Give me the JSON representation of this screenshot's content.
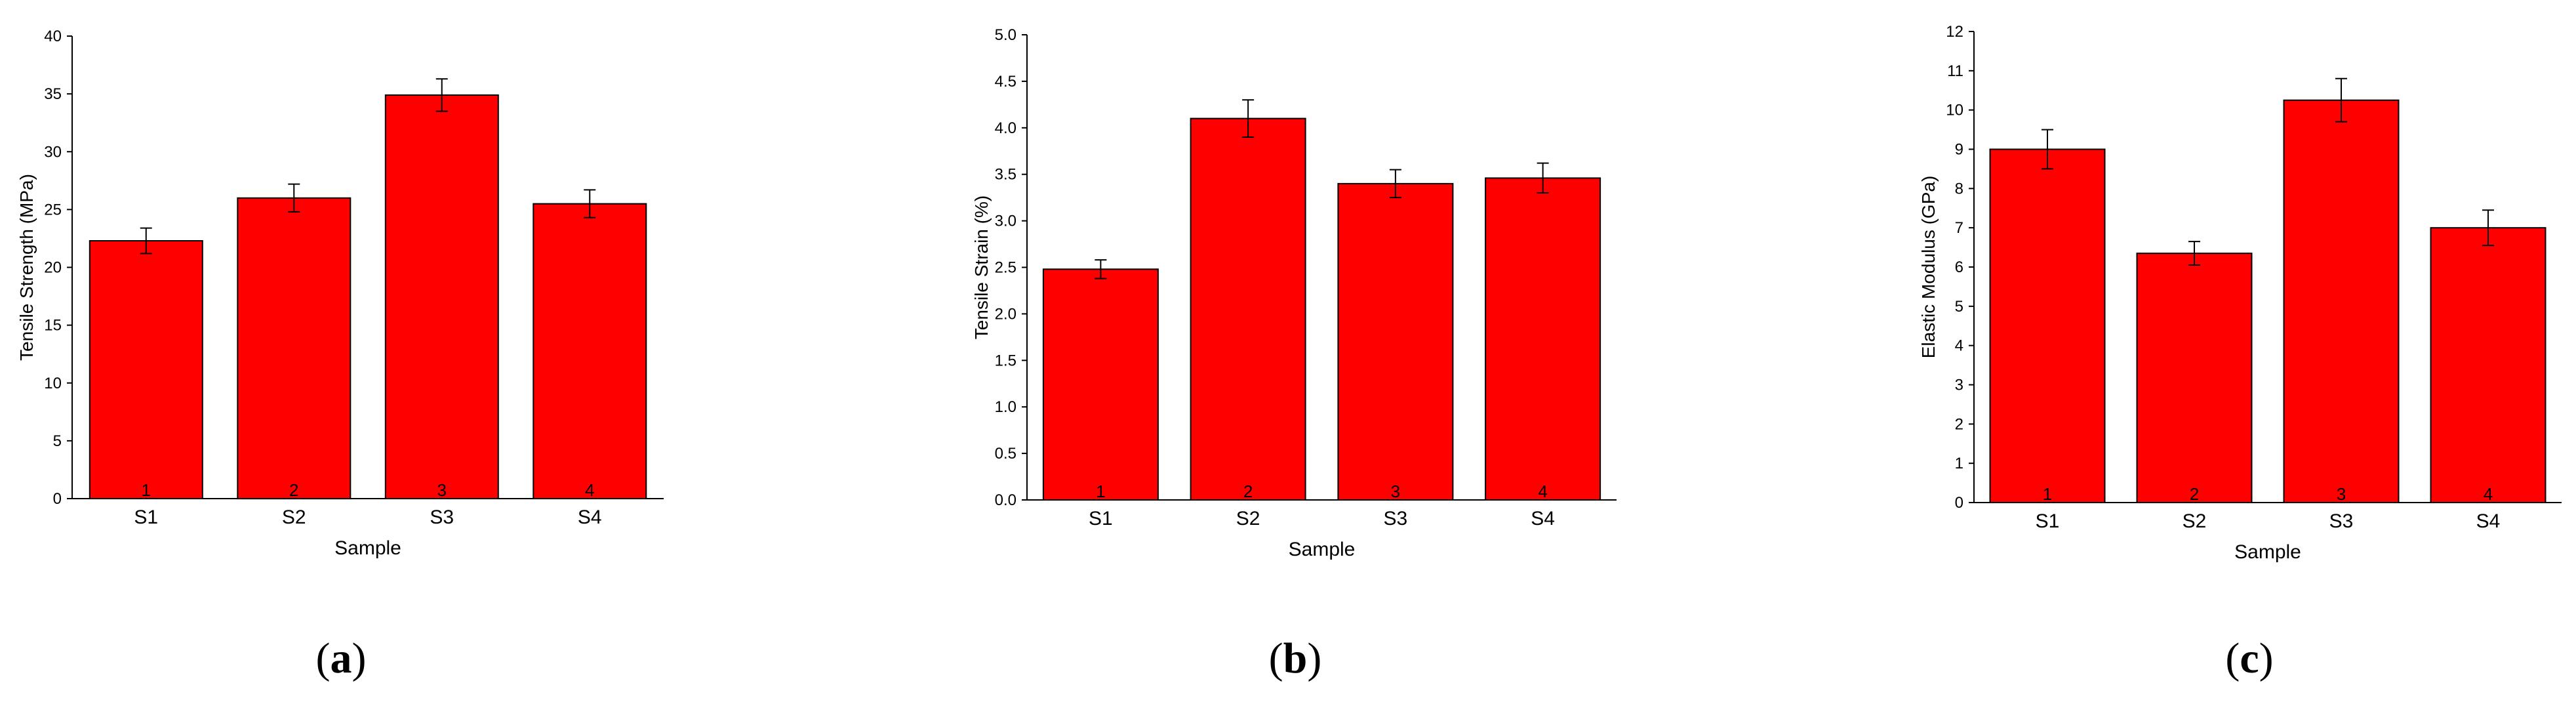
{
  "colors": {
    "bar_fill": "#ff0000",
    "bar_stroke": "#000000",
    "axis": "#000000"
  },
  "chart_data": [
    {
      "panel_label": "a",
      "type": "bar",
      "categories": [
        "S1",
        "S2",
        "S3",
        "S4"
      ],
      "bar_numbers": [
        "1",
        "2",
        "3",
        "4"
      ],
      "values": [
        22.3,
        26.0,
        34.9,
        25.5
      ],
      "errors": [
        1.1,
        1.2,
        1.4,
        1.2
      ],
      "xlabel": "Sample",
      "ylabel": "Tensile Strength (MPa)",
      "ylim": [
        0,
        40
      ],
      "yticks": [
        "0",
        "5",
        "10",
        "15",
        "20",
        "25",
        "30",
        "35",
        "40"
      ],
      "grid": false
    },
    {
      "panel_label": "b",
      "type": "bar",
      "categories": [
        "S1",
        "S2",
        "S3",
        "S4"
      ],
      "bar_numbers": [
        "1",
        "2",
        "3",
        "4"
      ],
      "values": [
        2.48,
        4.1,
        3.4,
        3.46
      ],
      "errors": [
        0.1,
        0.2,
        0.15,
        0.16
      ],
      "xlabel": "Sample",
      "ylabel": "Tensile Strain (%)",
      "ylim": [
        0,
        5
      ],
      "yticks": [
        "0.0",
        "0.5",
        "1.0",
        "1.5",
        "2.0",
        "2.5",
        "3.0",
        "3.5",
        "4.0",
        "4.5",
        "5.0"
      ],
      "grid": false
    },
    {
      "panel_label": "c",
      "type": "bar",
      "categories": [
        "S1",
        "S2",
        "S3",
        "S4"
      ],
      "bar_numbers": [
        "1",
        "2",
        "3",
        "4"
      ],
      "values": [
        9.0,
        6.35,
        10.25,
        7.0
      ],
      "errors": [
        0.5,
        0.3,
        0.55,
        0.45
      ],
      "xlabel": "Sample",
      "ylabel": "Elastic Modulus (GPa)",
      "ylim": [
        0,
        12
      ],
      "yticks": [
        "0",
        "1",
        "2",
        "3",
        "4",
        "5",
        "6",
        "7",
        "8",
        "9",
        "10",
        "11",
        "12"
      ],
      "grid": false
    }
  ]
}
